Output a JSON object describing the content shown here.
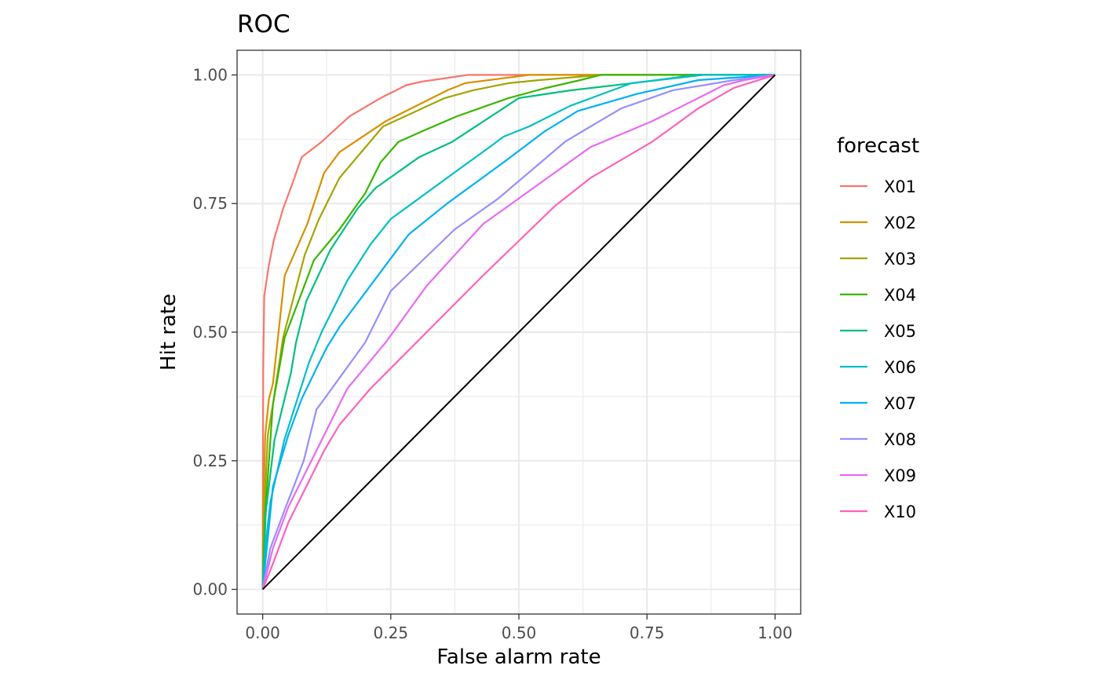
{
  "chart_data": {
    "type": "line",
    "title": "ROC",
    "xlabel": "False alarm rate",
    "ylabel": "Hit rate",
    "xlim": [
      -0.05,
      1.05
    ],
    "ylim": [
      -0.048,
      1.048
    ],
    "x_ticks": [
      0,
      0.25,
      0.5,
      0.75,
      1
    ],
    "x_tick_labels": [
      "0.00",
      "0.25",
      "0.50",
      "0.75",
      "1.00"
    ],
    "y_ticks": [
      0,
      0.25,
      0.5,
      0.75,
      1
    ],
    "y_tick_labels": [
      "0.00",
      "0.25",
      "0.50",
      "0.75",
      "1.00"
    ],
    "grid": true,
    "legend": {
      "title": "forecast",
      "position": "right"
    },
    "reference_line": {
      "x": [
        0,
        1
      ],
      "y": [
        0,
        1
      ],
      "color": "#000000"
    },
    "series": [
      {
        "name": "X01",
        "color": "#F8766D",
        "points": [
          [
            0,
            0
          ],
          [
            0.001,
            0.43
          ],
          [
            0.003,
            0.57
          ],
          [
            0.012,
            0.63
          ],
          [
            0.022,
            0.68
          ],
          [
            0.04,
            0.74
          ],
          [
            0.062,
            0.8
          ],
          [
            0.076,
            0.84
          ],
          [
            0.115,
            0.87
          ],
          [
            0.17,
            0.92
          ],
          [
            0.23,
            0.955
          ],
          [
            0.28,
            0.98
          ],
          [
            0.31,
            0.987
          ],
          [
            0.38,
            0.997
          ],
          [
            0.4,
            1
          ],
          [
            1,
            1
          ]
        ]
      },
      {
        "name": "X02",
        "color": "#D89000",
        "points": [
          [
            0,
            0
          ],
          [
            0.001,
            0.15
          ],
          [
            0.005,
            0.3
          ],
          [
            0.012,
            0.37
          ],
          [
            0.02,
            0.4
          ],
          [
            0.043,
            0.61
          ],
          [
            0.087,
            0.71
          ],
          [
            0.12,
            0.81
          ],
          [
            0.15,
            0.85
          ],
          [
            0.24,
            0.91
          ],
          [
            0.36,
            0.97
          ],
          [
            0.395,
            0.984
          ],
          [
            0.52,
            1
          ],
          [
            1,
            1
          ]
        ]
      },
      {
        "name": "X03",
        "color": "#A3A500",
        "points": [
          [
            0,
            0
          ],
          [
            0.003,
            0.15
          ],
          [
            0.01,
            0.3
          ],
          [
            0.02,
            0.36
          ],
          [
            0.04,
            0.49
          ],
          [
            0.082,
            0.65
          ],
          [
            0.11,
            0.72
          ],
          [
            0.15,
            0.8
          ],
          [
            0.235,
            0.9
          ],
          [
            0.355,
            0.955
          ],
          [
            0.41,
            0.97
          ],
          [
            0.48,
            0.984
          ],
          [
            0.54,
            0.99
          ],
          [
            0.66,
            1
          ],
          [
            1,
            1
          ]
        ]
      },
      {
        "name": "X04",
        "color": "#39B600",
        "points": [
          [
            0,
            0
          ],
          [
            0.005,
            0.15
          ],
          [
            0.02,
            0.36
          ],
          [
            0.043,
            0.49
          ],
          [
            0.085,
            0.6
          ],
          [
            0.1,
            0.64
          ],
          [
            0.15,
            0.7
          ],
          [
            0.2,
            0.77
          ],
          [
            0.23,
            0.83
          ],
          [
            0.265,
            0.87
          ],
          [
            0.31,
            0.89
          ],
          [
            0.38,
            0.92
          ],
          [
            0.48,
            0.955
          ],
          [
            0.55,
            0.974
          ],
          [
            0.62,
            0.99
          ],
          [
            0.66,
            1
          ],
          [
            1,
            1
          ]
        ]
      },
      {
        "name": "X05",
        "color": "#00BF7D",
        "points": [
          [
            0,
            0
          ],
          [
            0.006,
            0.15
          ],
          [
            0.023,
            0.29
          ],
          [
            0.055,
            0.42
          ],
          [
            0.065,
            0.48
          ],
          [
            0.085,
            0.56
          ],
          [
            0.132,
            0.66
          ],
          [
            0.185,
            0.74
          ],
          [
            0.22,
            0.78
          ],
          [
            0.305,
            0.84
          ],
          [
            0.37,
            0.87
          ],
          [
            0.5,
            0.955
          ],
          [
            0.6,
            0.97
          ],
          [
            0.73,
            0.985
          ],
          [
            0.8,
            0.994
          ],
          [
            0.84,
            1
          ],
          [
            1,
            1
          ]
        ]
      },
      {
        "name": "X06",
        "color": "#00BFC4",
        "points": [
          [
            0,
            0
          ],
          [
            0.005,
            0.08
          ],
          [
            0.015,
            0.17
          ],
          [
            0.042,
            0.29
          ],
          [
            0.09,
            0.44
          ],
          [
            0.115,
            0.5
          ],
          [
            0.165,
            0.6
          ],
          [
            0.21,
            0.67
          ],
          [
            0.25,
            0.72
          ],
          [
            0.36,
            0.8
          ],
          [
            0.45,
            0.865
          ],
          [
            0.47,
            0.88
          ],
          [
            0.52,
            0.9
          ],
          [
            0.6,
            0.94
          ],
          [
            0.72,
            0.984
          ],
          [
            0.86,
            1
          ],
          [
            1,
            1
          ]
        ]
      },
      {
        "name": "X07",
        "color": "#00B0F6",
        "points": [
          [
            0,
            0
          ],
          [
            0.01,
            0.1
          ],
          [
            0.02,
            0.2
          ],
          [
            0.05,
            0.3
          ],
          [
            0.076,
            0.37
          ],
          [
            0.11,
            0.44
          ],
          [
            0.125,
            0.47
          ],
          [
            0.15,
            0.51
          ],
          [
            0.285,
            0.69
          ],
          [
            0.36,
            0.75
          ],
          [
            0.47,
            0.83
          ],
          [
            0.55,
            0.89
          ],
          [
            0.615,
            0.93
          ],
          [
            0.73,
            0.963
          ],
          [
            0.85,
            0.99
          ],
          [
            1,
            1
          ]
        ]
      },
      {
        "name": "X08",
        "color": "#9590FF",
        "points": [
          [
            0,
            0
          ],
          [
            0.015,
            0.08
          ],
          [
            0.045,
            0.16
          ],
          [
            0.08,
            0.25
          ],
          [
            0.105,
            0.35
          ],
          [
            0.12,
            0.37
          ],
          [
            0.2,
            0.48
          ],
          [
            0.25,
            0.58
          ],
          [
            0.375,
            0.7
          ],
          [
            0.46,
            0.76
          ],
          [
            0.59,
            0.87
          ],
          [
            0.64,
            0.9
          ],
          [
            0.7,
            0.935
          ],
          [
            0.8,
            0.97
          ],
          [
            0.92,
            0.99
          ],
          [
            1,
            1
          ]
        ]
      },
      {
        "name": "X09",
        "color": "#E76BF3",
        "points": [
          [
            0,
            0
          ],
          [
            0.02,
            0.08
          ],
          [
            0.05,
            0.16
          ],
          [
            0.075,
            0.21
          ],
          [
            0.115,
            0.29
          ],
          [
            0.165,
            0.39
          ],
          [
            0.24,
            0.48
          ],
          [
            0.32,
            0.59
          ],
          [
            0.43,
            0.71
          ],
          [
            0.57,
            0.81
          ],
          [
            0.64,
            0.86
          ],
          [
            0.76,
            0.91
          ],
          [
            0.84,
            0.95
          ],
          [
            0.9,
            0.98
          ],
          [
            0.94,
            0.99
          ],
          [
            1,
            1
          ]
        ]
      },
      {
        "name": "X10",
        "color": "#FF62BC",
        "points": [
          [
            0,
            0
          ],
          [
            0.02,
            0.05
          ],
          [
            0.05,
            0.13
          ],
          [
            0.08,
            0.19
          ],
          [
            0.12,
            0.27
          ],
          [
            0.15,
            0.32
          ],
          [
            0.21,
            0.39
          ],
          [
            0.32,
            0.5
          ],
          [
            0.43,
            0.61
          ],
          [
            0.57,
            0.745
          ],
          [
            0.64,
            0.8
          ],
          [
            0.76,
            0.87
          ],
          [
            0.85,
            0.935
          ],
          [
            0.92,
            0.975
          ],
          [
            1,
            1
          ]
        ]
      }
    ]
  }
}
